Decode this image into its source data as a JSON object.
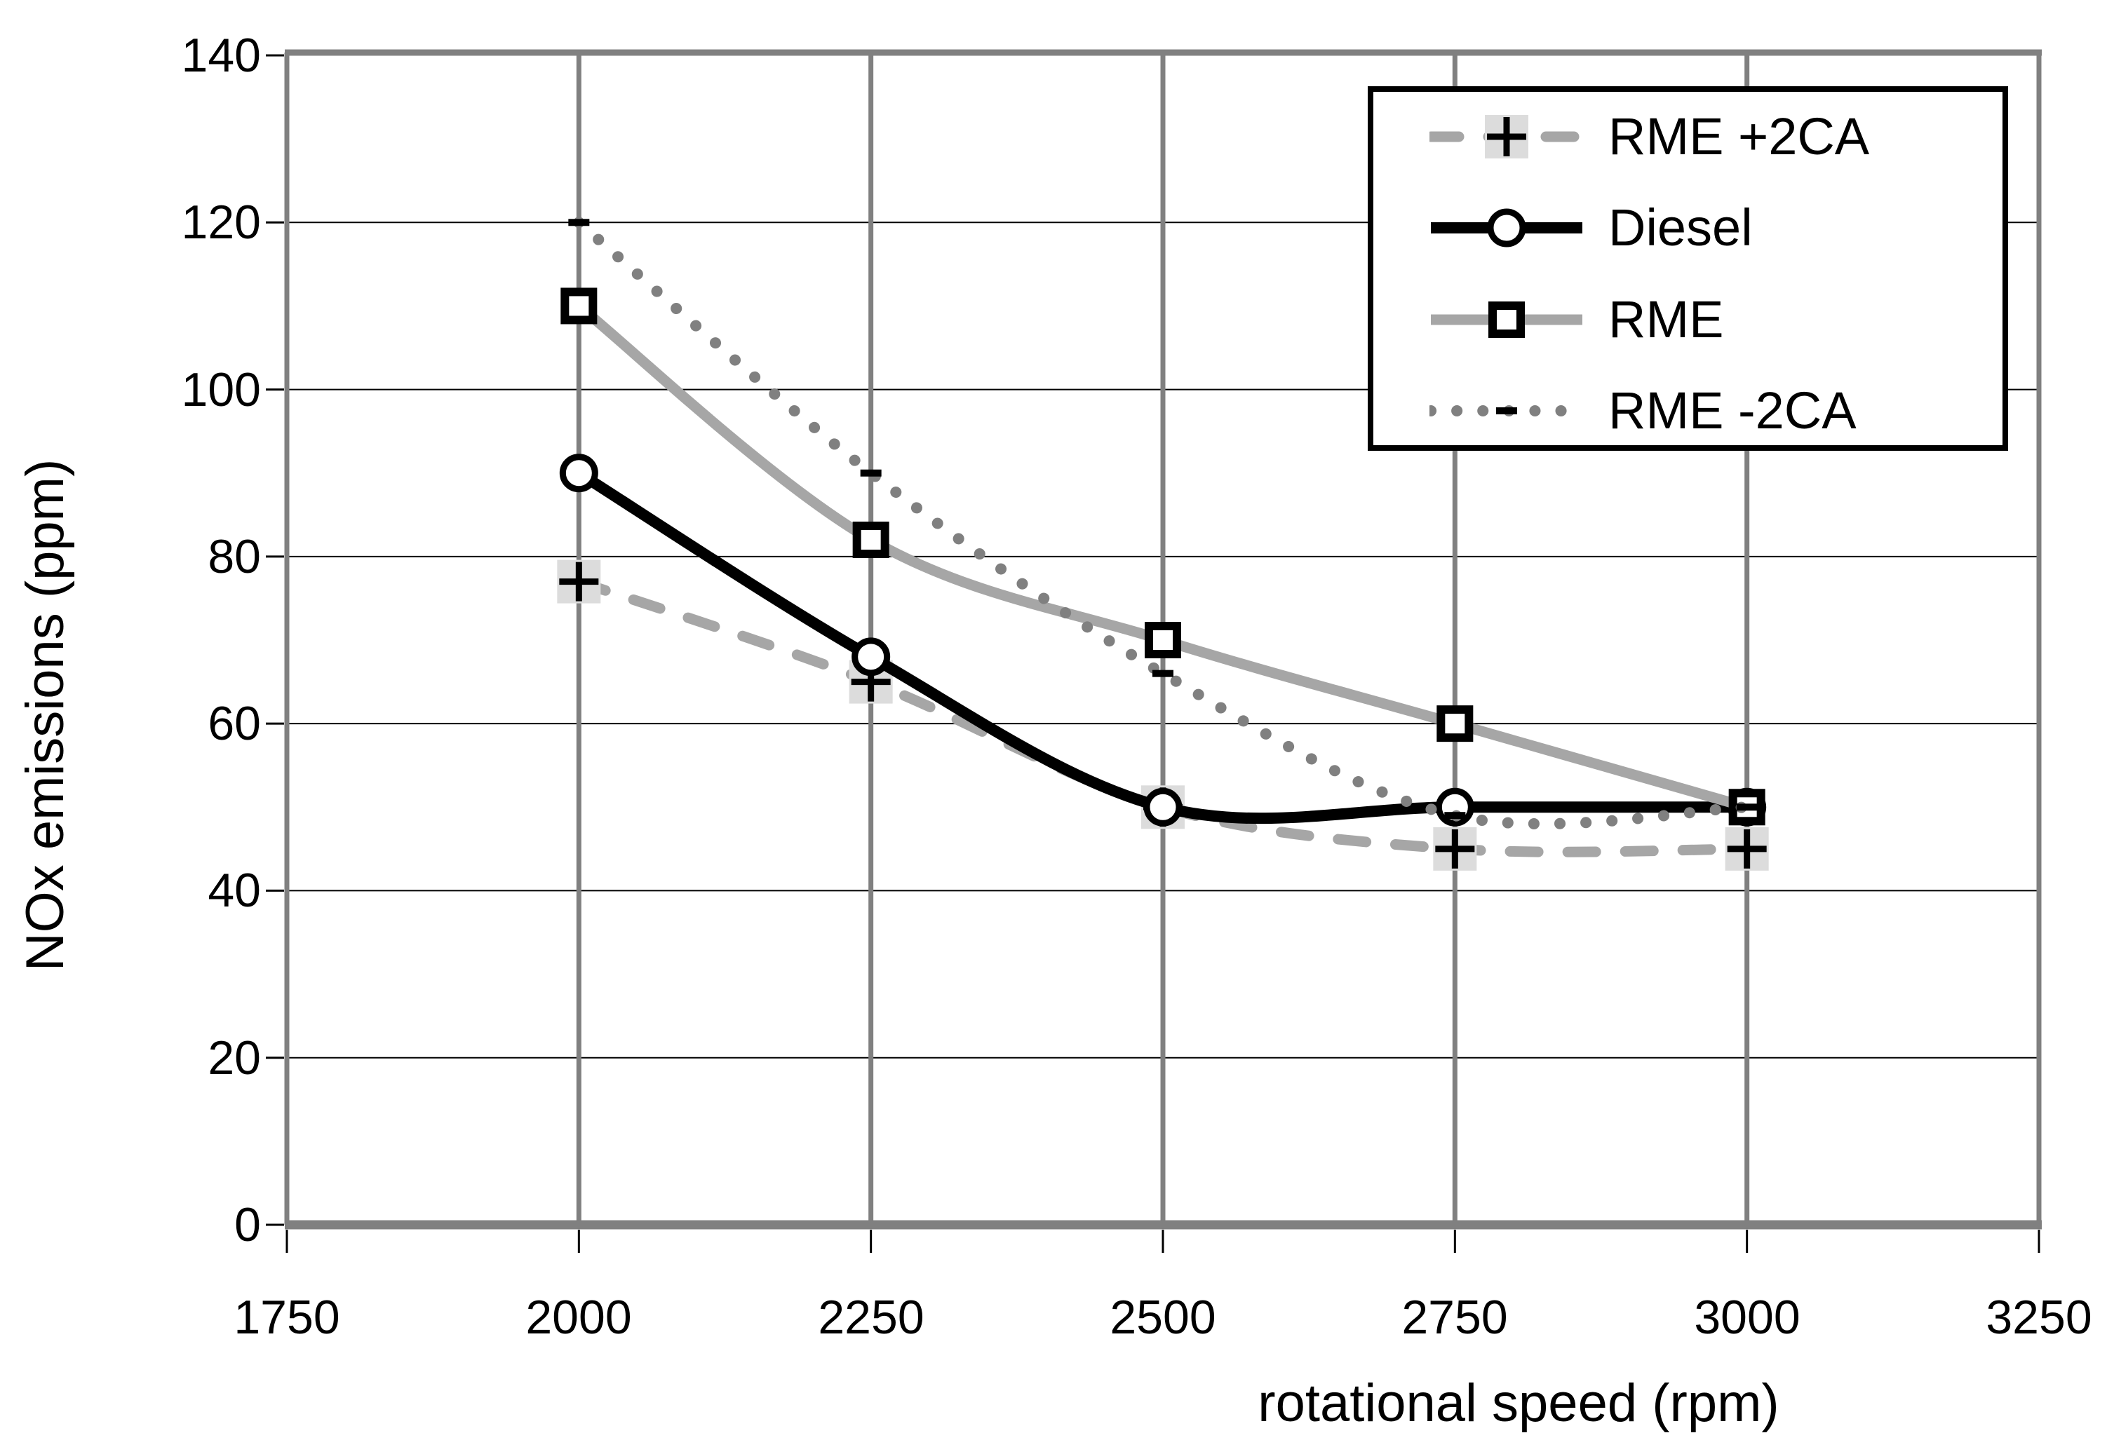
{
  "chart_data": {
    "type": "line",
    "title": "",
    "xlabel": "rotational speed (rpm)",
    "ylabel": "NOx emissions (ppm)",
    "xlim": [
      1750,
      3250
    ],
    "ylim": [
      0,
      140
    ],
    "xticks": [
      "1750",
      "2000",
      "2250",
      "2500",
      "2750",
      "3000",
      "3250"
    ],
    "yticks": [
      "0",
      "20",
      "40",
      "60",
      "80",
      "100",
      "120",
      "140"
    ],
    "grid": true,
    "legend_position": "top-right",
    "x": [
      2000,
      2250,
      2500,
      2750,
      3000
    ],
    "series": [
      {
        "name": "RME +2CA",
        "values": [
          77,
          65,
          50,
          45,
          45
        ],
        "line": "dashed",
        "color": "#a6a6a6",
        "marker": "plus",
        "marker_color": "#000000",
        "marker_bg": "#dcdcdc"
      },
      {
        "name": "Diesel",
        "values": [
          90,
          68,
          50,
          50,
          50
        ],
        "line": "solid",
        "color": "#000000",
        "marker": "circle",
        "marker_color": "#000000",
        "marker_bg": "#ffffff"
      },
      {
        "name": "RME",
        "values": [
          110,
          82,
          70,
          60,
          50
        ],
        "line": "solid",
        "color": "#a6a6a6",
        "marker": "square",
        "marker_color": "#000000",
        "marker_bg": "#ffffff"
      },
      {
        "name": "RME -2CA",
        "values": [
          120,
          90,
          66,
          49,
          50
        ],
        "line": "dotted",
        "color": "#808080",
        "marker": "dash",
        "marker_color": "#000000",
        "marker_bg": null
      }
    ],
    "colors": {
      "horizontal_grid": "#000000",
      "vertical_grid": "#808080",
      "plot_border": "#808080",
      "axis_line": "#808080",
      "tick": "#000000",
      "text": "#000000",
      "background": "#ffffff"
    }
  }
}
